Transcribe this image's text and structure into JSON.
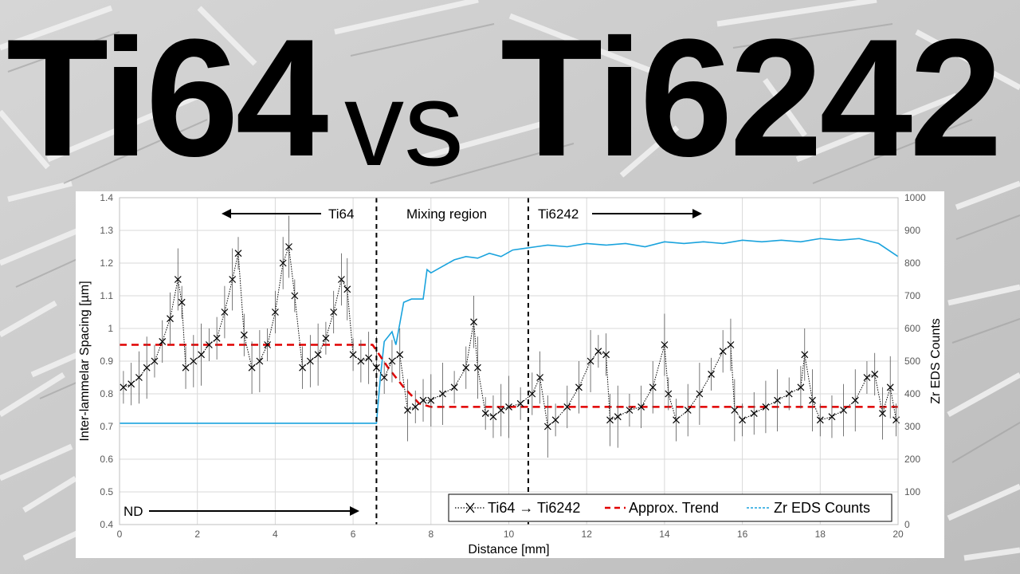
{
  "header": {
    "left": "Ti64",
    "middle": "vs",
    "right": "Ti6242"
  },
  "colors": {
    "background": "#c9c9c9",
    "spacing_series": "#000000",
    "trend": "#e00000",
    "zr_series": "#1aa3dd",
    "grid": "#d9d9d9"
  },
  "chart_data": {
    "type": "line",
    "xlabel": "Distance [mm]",
    "ylabel": "Inter-lammelar Spacing [µm]",
    "y2label": "Zr EDS Counts",
    "xlim": [
      0,
      20
    ],
    "ylim": [
      0.4,
      1.4
    ],
    "y2lim": [
      0,
      1000
    ],
    "x_ticks": [
      "0",
      "2",
      "4",
      "6",
      "8",
      "10",
      "12",
      "14",
      "16",
      "18",
      "20"
    ],
    "y_ticks": [
      "0.4",
      "0.5",
      "0.6",
      "0.7",
      "0.8",
      "0.9",
      "1",
      "1.1",
      "1.2",
      "1.3",
      "1.4"
    ],
    "y2_ticks": [
      "0",
      "100",
      "200",
      "300",
      "400",
      "500",
      "600",
      "700",
      "800",
      "900",
      "1000"
    ],
    "grid": true,
    "legend_position": "bottom-right",
    "vlines": [
      6.6,
      10.5
    ],
    "annotations": {
      "ti64": "Ti64",
      "mixing": "Mixing region",
      "ti6242": "Ti6242",
      "nd": "ND"
    },
    "series": [
      {
        "name": "Ti64 → Ti6242",
        "axis": "left",
        "style": "dotted-x-markers-with-error-bars",
        "x": [
          0.1,
          0.3,
          0.5,
          0.7,
          0.9,
          1.1,
          1.3,
          1.5,
          1.6,
          1.7,
          1.9,
          2.1,
          2.3,
          2.5,
          2.7,
          2.9,
          3.05,
          3.2,
          3.4,
          3.6,
          3.8,
          4.0,
          4.2,
          4.35,
          4.5,
          4.7,
          4.9,
          5.1,
          5.3,
          5.5,
          5.7,
          5.85,
          6.0,
          6.2,
          6.4,
          6.6,
          6.8,
          7.0,
          7.2,
          7.4,
          7.6,
          7.8,
          8.0,
          8.3,
          8.6,
          8.9,
          9.1,
          9.2,
          9.4,
          9.6,
          9.8,
          10.0,
          10.3,
          10.6,
          10.8,
          11.0,
          11.2,
          11.5,
          11.8,
          12.1,
          12.3,
          12.5,
          12.6,
          12.8,
          13.1,
          13.4,
          13.7,
          14.0,
          14.1,
          14.3,
          14.6,
          14.9,
          15.2,
          15.5,
          15.7,
          15.8,
          16.0,
          16.3,
          16.6,
          16.9,
          17.2,
          17.5,
          17.6,
          17.8,
          18.0,
          18.3,
          18.6,
          18.9,
          19.2,
          19.4,
          19.6,
          19.8,
          19.95
        ],
        "y": [
          0.82,
          0.83,
          0.85,
          0.88,
          0.9,
          0.96,
          1.03,
          1.15,
          1.08,
          0.88,
          0.9,
          0.92,
          0.95,
          0.97,
          1.05,
          1.15,
          1.23,
          0.98,
          0.88,
          0.9,
          0.95,
          1.05,
          1.2,
          1.25,
          1.1,
          0.88,
          0.9,
          0.92,
          0.97,
          1.05,
          1.15,
          1.12,
          0.92,
          0.9,
          0.91,
          0.88,
          0.85,
          0.9,
          0.92,
          0.75,
          0.76,
          0.78,
          0.78,
          0.8,
          0.82,
          0.88,
          1.02,
          0.88,
          0.74,
          0.73,
          0.75,
          0.76,
          0.77,
          0.8,
          0.85,
          0.7,
          0.72,
          0.76,
          0.82,
          0.9,
          0.93,
          0.92,
          0.72,
          0.73,
          0.75,
          0.76,
          0.82,
          0.95,
          0.8,
          0.72,
          0.75,
          0.8,
          0.86,
          0.93,
          0.95,
          0.75,
          0.72,
          0.74,
          0.76,
          0.78,
          0.8,
          0.82,
          0.92,
          0.78,
          0.72,
          0.73,
          0.75,
          0.78,
          0.85,
          0.86,
          0.74,
          0.82,
          0.72
        ]
      },
      {
        "name": "Approx. Trend",
        "axis": "left",
        "style": "red-dashed",
        "x": [
          0,
          6.5,
          6.9,
          7.3,
          7.7,
          8.0,
          20
        ],
        "y": [
          0.95,
          0.95,
          0.88,
          0.82,
          0.77,
          0.76,
          0.76
        ]
      },
      {
        "name": "Zr EDS Counts",
        "axis": "right",
        "style": "blue-thin",
        "x": [
          0,
          6.6,
          6.7,
          6.8,
          7.0,
          7.1,
          7.3,
          7.5,
          7.8,
          7.9,
          8.0,
          8.3,
          8.6,
          8.9,
          9.2,
          9.5,
          9.8,
          10.1,
          10.4,
          10.7,
          11.0,
          11.5,
          12.0,
          12.5,
          13.0,
          13.5,
          14.0,
          14.5,
          15.0,
          15.5,
          16.0,
          16.5,
          17.0,
          17.5,
          18.0,
          18.5,
          19.0,
          19.5,
          20.0
        ],
        "y": [
          310,
          310,
          450,
          560,
          590,
          550,
          680,
          690,
          690,
          780,
          770,
          790,
          810,
          820,
          815,
          830,
          820,
          840,
          845,
          850,
          855,
          850,
          860,
          855,
          860,
          850,
          865,
          860,
          865,
          860,
          870,
          865,
          870,
          865,
          875,
          870,
          875,
          860,
          820
        ]
      }
    ]
  }
}
